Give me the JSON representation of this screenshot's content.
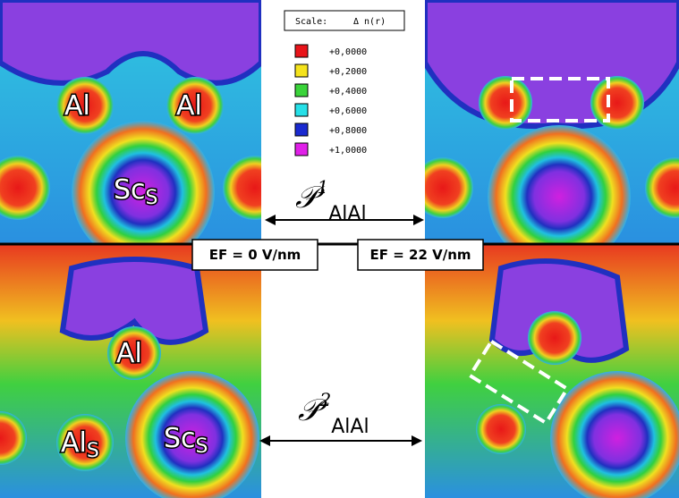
{
  "scale": {
    "title": "Scale:",
    "quantity": "Δ n(r)",
    "entries": [
      {
        "label": "+0,0000",
        "color": "#e8141a"
      },
      {
        "label": "+0,2000",
        "color": "#f5e31c"
      },
      {
        "label": "+0,4000",
        "color": "#3ad43a"
      },
      {
        "label": "+0,6000",
        "color": "#26e0e8"
      },
      {
        "label": "+0,8000",
        "color": "#1a2ad0"
      },
      {
        "label": "+1,0000",
        "color": "#e020e8"
      }
    ]
  },
  "panels": [
    {
      "labels": [
        {
          "text": "Al"
        },
        {
          "text": "Al"
        },
        {
          "text": "Sc",
          "sub": "S"
        }
      ]
    },
    {
      "labels": [
        {
          "text": "Al"
        },
        {
          "text": "Al",
          "sub": "S"
        },
        {
          "text": "Sc",
          "sub": "S"
        }
      ]
    }
  ],
  "field_labels": [
    "EF = 0 V/nm",
    "EF = 22 V/nm"
  ],
  "paths": [
    {
      "symbol": "𝒫",
      "superscript": "1",
      "subscript": "AlAl"
    },
    {
      "symbol": "𝒫",
      "superscript": "2",
      "subscript": "AlAl"
    }
  ]
}
